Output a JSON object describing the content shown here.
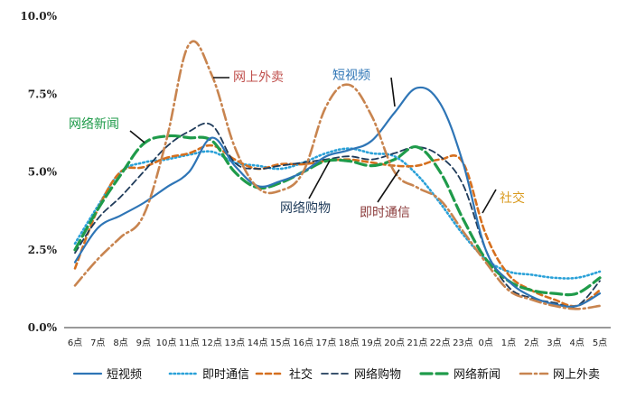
{
  "chart_data": {
    "type": "line",
    "title": "",
    "xlabel": "",
    "ylabel": "",
    "categories": [
      "6点",
      "7点",
      "8点",
      "9点",
      "10点",
      "11点",
      "12点",
      "13点",
      "14点",
      "15点",
      "16点",
      "17点",
      "18点",
      "19点",
      "20点",
      "21点",
      "22点",
      "23点",
      "0点",
      "1点",
      "2点",
      "3点",
      "4点",
      "5点"
    ],
    "ylim": [
      0,
      10
    ],
    "yticks": [
      "0.0%",
      "2.5%",
      "5.0%",
      "7.5%",
      "10.0%"
    ],
    "ytick_values": [
      0,
      2.5,
      5,
      7.5,
      10
    ],
    "grid": false,
    "legend_position": "bottom",
    "series": [
      {
        "name": "短视频",
        "color": "#2E75B6",
        "dash": "solid",
        "values": [
          2.1,
          3.2,
          3.6,
          4.0,
          4.5,
          5.0,
          6.1,
          5.2,
          4.55,
          4.7,
          5.0,
          5.5,
          5.7,
          6.0,
          6.9,
          7.7,
          7.2,
          5.3,
          2.5,
          1.5,
          1.0,
          0.75,
          0.7,
          1.1
        ]
      },
      {
        "name": "即时通信",
        "color": "#2AA1D8",
        "dash": "dot",
        "values": [
          2.7,
          3.9,
          5.0,
          5.3,
          5.4,
          5.55,
          5.65,
          5.3,
          5.2,
          5.1,
          5.3,
          5.6,
          5.75,
          5.6,
          5.5,
          4.9,
          4.0,
          3.0,
          2.2,
          1.8,
          1.7,
          1.6,
          1.6,
          1.8
        ]
      },
      {
        "name": "社交",
        "color": "#D56F1E",
        "dash": "dash",
        "values": [
          1.9,
          3.8,
          5.0,
          5.15,
          5.45,
          5.6,
          5.85,
          5.4,
          5.1,
          5.25,
          5.25,
          5.35,
          5.4,
          5.3,
          5.2,
          5.2,
          5.4,
          5.3,
          3.0,
          1.7,
          1.2,
          0.9,
          0.7,
          1.2
        ]
      },
      {
        "name": "网络购物",
        "color": "#1F3B5A",
        "dash": "longdash",
        "values": [
          2.4,
          3.5,
          4.2,
          5.0,
          5.8,
          6.3,
          6.5,
          5.3,
          5.1,
          5.2,
          5.3,
          5.4,
          5.5,
          5.4,
          5.6,
          5.8,
          5.5,
          4.6,
          2.5,
          1.3,
          0.95,
          0.8,
          0.7,
          1.5
        ]
      },
      {
        "name": "网络新闻",
        "color": "#1F9B4A",
        "dash": "longdash-bold",
        "values": [
          2.5,
          3.8,
          4.9,
          5.9,
          6.15,
          6.1,
          6.0,
          5.0,
          4.5,
          4.65,
          5.0,
          5.35,
          5.35,
          5.2,
          5.4,
          5.8,
          5.0,
          3.5,
          2.2,
          1.5,
          1.2,
          1.1,
          1.1,
          1.6
        ]
      },
      {
        "name": "网上外卖",
        "color": "#C8844F",
        "dash": "dashdot",
        "values": [
          1.35,
          2.2,
          2.9,
          3.6,
          6.0,
          9.1,
          8.1,
          5.8,
          4.5,
          4.4,
          5.0,
          7.1,
          7.8,
          6.8,
          5.0,
          4.5,
          4.1,
          3.1,
          2.1,
          1.2,
          0.9,
          0.7,
          0.6,
          0.7
        ]
      }
    ],
    "annotations": [
      {
        "text": "网上外卖",
        "series": "网上外卖",
        "color": "#C0504D"
      },
      {
        "text": "短视频",
        "series": "短视频",
        "color": "#2E75B6"
      },
      {
        "text": "网络新闻",
        "series": "网络新闻",
        "color": "#1F9B4A"
      },
      {
        "text": "网络购物",
        "series": "网络购物",
        "color": "#1F3B5A"
      },
      {
        "text": "即时通信",
        "series": "即时通信",
        "color": "#8B3A3A"
      },
      {
        "text": "社交",
        "series": "社交",
        "color": "#D99A1E"
      }
    ]
  }
}
